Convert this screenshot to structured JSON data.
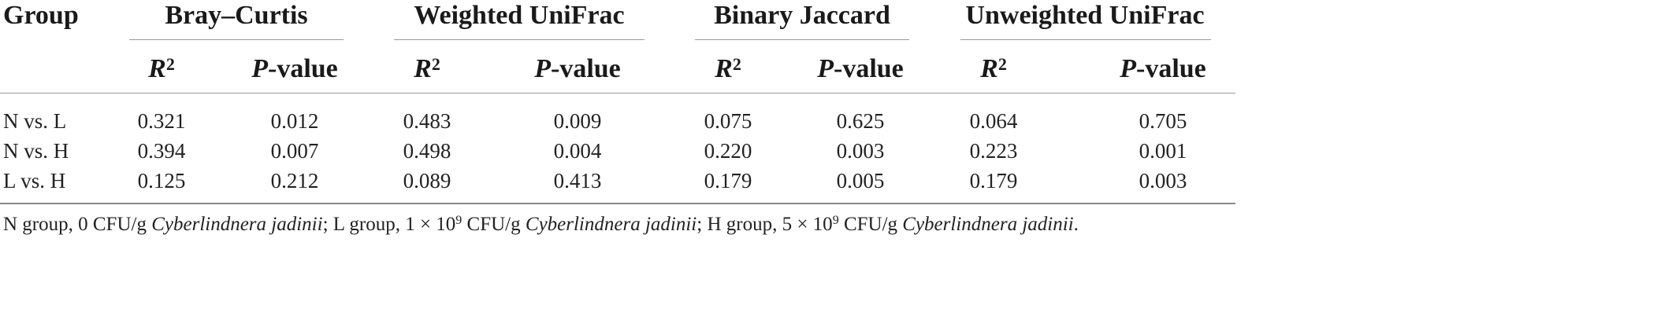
{
  "table": {
    "group_header": "Group",
    "metrics": [
      {
        "name": "Bray–Curtis"
      },
      {
        "name": "Weighted UniFrac"
      },
      {
        "name": "Binary Jaccard"
      },
      {
        "name": "Unweighted UniFrac"
      }
    ],
    "sub_headers": {
      "r2_letter": "R",
      "r2_exp": "2",
      "p_letter": "P",
      "p_suffix": "-value"
    },
    "rows": [
      {
        "group": "N vs. L",
        "values": [
          "0.321",
          "0.012",
          "0.483",
          "0.009",
          "0.075",
          "0.625",
          "0.064",
          "0.705"
        ]
      },
      {
        "group": "N vs. H",
        "values": [
          "0.394",
          "0.007",
          "0.498",
          "0.004",
          "0.220",
          "0.003",
          "0.223",
          "0.001"
        ]
      },
      {
        "group": "L vs. H",
        "values": [
          "0.125",
          "0.212",
          "0.089",
          "0.413",
          "0.179",
          "0.005",
          "0.179",
          "0.003"
        ]
      }
    ]
  },
  "footnote": {
    "p1": "N group, 0 CFU/g ",
    "species": "Cyberlindnera jadinii",
    "p2": "; L group, 1 × 10",
    "exp": "9",
    "p3": " CFU/g ",
    "p4": "; H group, 5 × 10",
    "p5": " CFU/g ",
    "p6": "."
  }
}
